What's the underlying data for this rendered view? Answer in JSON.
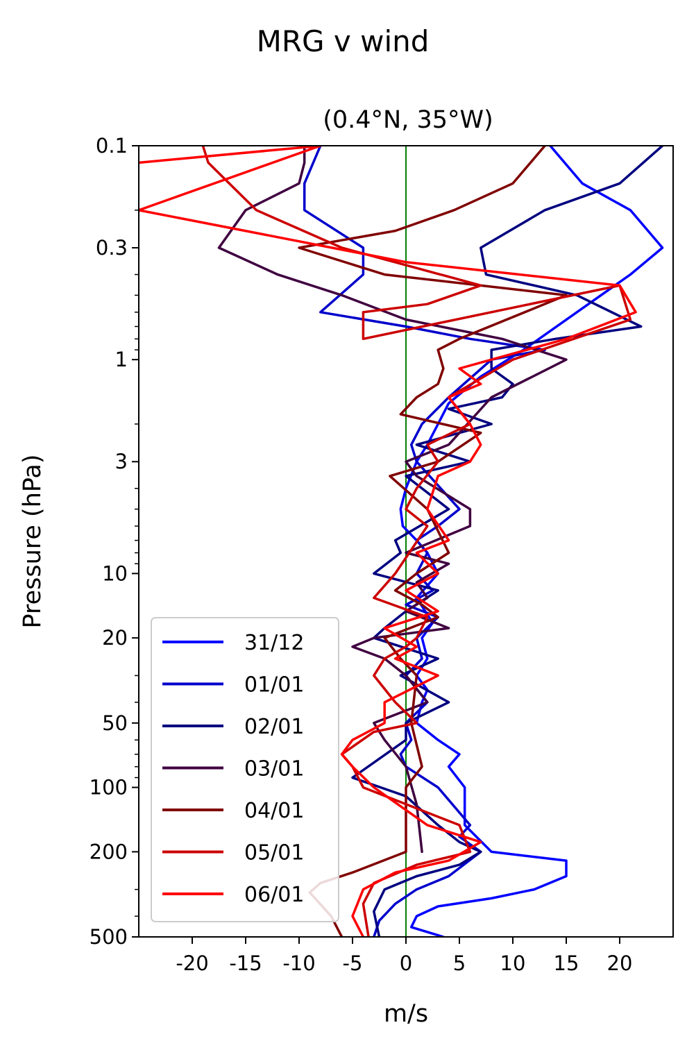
{
  "chart_data": {
    "type": "line",
    "title": "MRG v wind",
    "subtitle": "(0.4°N, 35°W)",
    "xlabel": "m/s",
    "ylabel": "Pressure (hPa)",
    "xlim": [
      -25,
      25
    ],
    "ylim": [
      500,
      0.1
    ],
    "yscale": "log",
    "xticks": [
      -20,
      -15,
      -10,
      -5,
      0,
      5,
      10,
      15,
      20
    ],
    "xtick_labels": [
      "-20",
      "-15",
      "-10",
      "-5",
      "0",
      "5",
      "10",
      "15",
      "20"
    ],
    "yticks": [
      0.1,
      0.3,
      1,
      3,
      10,
      20,
      50,
      100,
      200,
      500
    ],
    "ytick_labels": [
      "0.1",
      "0.3",
      "1",
      "3",
      "10",
      "20",
      "50",
      "100",
      "200",
      "500"
    ],
    "zero_line": {
      "x": 0,
      "color": "#008000"
    },
    "grid": false,
    "legend_position": "lower-left",
    "series": [
      {
        "name": "31/12",
        "color": "#0000ff",
        "x": [
          13.5,
          16.5,
          21,
          24,
          21,
          16,
          11,
          7,
          4,
          3,
          2,
          1,
          0,
          -0.5,
          -0.3,
          1,
          2,
          3,
          1,
          2.5,
          1.5,
          2,
          1,
          2,
          1.5,
          1,
          3,
          5,
          4,
          5.5,
          5.5,
          8,
          15,
          15,
          12,
          8,
          3,
          1,
          0.5,
          3.5
        ],
        "y": [
          0.1,
          0.15,
          0.2,
          0.3,
          0.4,
          0.6,
          0.9,
          1.2,
          1.6,
          2,
          2.5,
          3,
          4,
          5,
          6,
          7,
          8,
          10,
          13,
          17,
          20,
          25,
          30,
          35,
          40,
          50,
          60,
          70,
          80,
          100,
          150,
          200,
          220,
          260,
          300,
          330,
          360,
          400,
          450,
          500
        ]
      },
      {
        "name": "01/01",
        "color": "#0000cc",
        "x": [
          -8,
          -9.5,
          -9.5,
          -4,
          -4,
          -8,
          0,
          6,
          13,
          8,
          4,
          1.5,
          0.5,
          1,
          5,
          3,
          1,
          2,
          1,
          2.5,
          0,
          3,
          1,
          1.5,
          0,
          2,
          0,
          0.5,
          -0.5,
          0,
          3,
          6,
          5,
          7,
          4,
          1,
          -1,
          -2.5,
          -3
        ],
        "y": [
          0.1,
          0.15,
          0.2,
          0.3,
          0.4,
          0.6,
          0.7,
          0.8,
          0.9,
          1,
          1.5,
          2,
          2.5,
          3,
          5,
          6,
          7,
          8,
          10,
          12,
          14,
          16,
          20,
          25,
          30,
          40,
          50,
          60,
          70,
          80,
          100,
          150,
          170,
          200,
          260,
          300,
          350,
          420,
          500
        ]
      },
      {
        "name": "02/01",
        "color": "#000080",
        "x": [
          24,
          20,
          13,
          7,
          7.5,
          16,
          22,
          14,
          8,
          8,
          10,
          9,
          4,
          8,
          1,
          6,
          0,
          4,
          -1,
          -0.5,
          -3,
          3,
          0,
          -2,
          -3,
          3,
          -0.5,
          4,
          0,
          0,
          -5,
          0,
          3,
          5,
          7,
          5,
          1,
          -2,
          -3,
          -2.5
        ],
        "y": [
          0.1,
          0.15,
          0.2,
          0.3,
          0.4,
          0.5,
          0.7,
          0.8,
          0.9,
          1.1,
          1.3,
          1.5,
          1.7,
          2,
          2.5,
          3,
          3.5,
          5,
          7,
          8,
          10,
          12,
          15,
          18,
          20,
          25,
          30,
          40,
          50,
          60,
          90,
          110,
          150,
          180,
          200,
          230,
          260,
          300,
          380,
          500
        ]
      },
      {
        "name": "03/01",
        "color": "#400040",
        "x": [
          -9.5,
          -9.5,
          -10,
          -15,
          -17.5,
          -12,
          -6,
          0,
          9,
          15,
          8,
          4,
          0,
          1,
          6,
          6,
          0,
          4,
          1,
          2,
          0,
          4,
          -3,
          -5,
          -2,
          0,
          2,
          -3,
          -2,
          0,
          1,
          1.5
        ],
        "y": [
          0.1,
          0.12,
          0.15,
          0.2,
          0.3,
          0.4,
          0.5,
          0.65,
          0.8,
          1,
          1.5,
          2.5,
          3,
          3.5,
          5,
          6,
          8,
          9,
          11,
          13,
          15,
          18,
          20,
          22,
          25,
          30,
          40,
          50,
          60,
          80,
          120,
          200
        ]
      },
      {
        "name": "04/01",
        "color": "#800000",
        "x": [
          13,
          10,
          4.5,
          -1,
          -10,
          -2,
          15,
          5,
          3,
          3.5,
          3,
          1,
          -0.5,
          7,
          3,
          -1.5,
          2,
          4,
          1,
          -1,
          1.5,
          3,
          -2,
          -0.5,
          1,
          0.5,
          1.5,
          0,
          0,
          -5,
          -8,
          -9,
          -7,
          -6
        ],
        "y": [
          0.1,
          0.15,
          0.2,
          0.25,
          0.3,
          0.4,
          0.5,
          0.8,
          0.9,
          1.1,
          1.3,
          1.5,
          1.8,
          2.2,
          3,
          3.5,
          5,
          8,
          10,
          12,
          14,
          16,
          20,
          25,
          30,
          50,
          80,
          100,
          200,
          250,
          280,
          310,
          400,
          500
        ]
      },
      {
        "name": "05/01",
        "color": "#cc0000",
        "x": [
          -19,
          -18.5,
          -14,
          -6,
          7,
          2,
          -4,
          -4,
          20,
          21,
          10,
          4,
          6,
          2,
          3,
          1,
          0,
          2,
          -1,
          -3,
          2,
          1,
          0,
          -2,
          -3,
          -1,
          1,
          -3,
          -6,
          -5,
          -4,
          5,
          6,
          1,
          -3,
          -4,
          -3.5
        ],
        "y": [
          0.1,
          0.12,
          0.2,
          0.3,
          0.45,
          0.55,
          0.6,
          0.8,
          0.45,
          0.65,
          1,
          1.5,
          2,
          2.5,
          3,
          4,
          5,
          6,
          10,
          13,
          16,
          20,
          22,
          25,
          30,
          40,
          50,
          55,
          70,
          80,
          100,
          150,
          200,
          230,
          280,
          350,
          500
        ]
      },
      {
        "name": "06/01",
        "color": "#ff0000",
        "x": [
          -25,
          -8,
          -25,
          0,
          20,
          21.5,
          15,
          8,
          5,
          7,
          4,
          6,
          7,
          6,
          3,
          2,
          4,
          1,
          3,
          0,
          3,
          -2,
          1,
          -1,
          3,
          -2,
          -2,
          -5,
          -6,
          -5,
          -3,
          2,
          7,
          4,
          -1,
          -4,
          -5,
          -4
        ],
        "y": [
          0.12,
          0.1,
          0.2,
          0.35,
          0.45,
          0.6,
          0.8,
          1,
          1.1,
          1.3,
          1.5,
          2,
          2.5,
          3,
          3.5,
          5,
          7,
          8,
          10,
          12,
          15,
          18,
          22,
          25,
          30,
          40,
          50,
          60,
          70,
          80,
          100,
          150,
          180,
          220,
          250,
          300,
          400,
          500
        ]
      }
    ]
  }
}
